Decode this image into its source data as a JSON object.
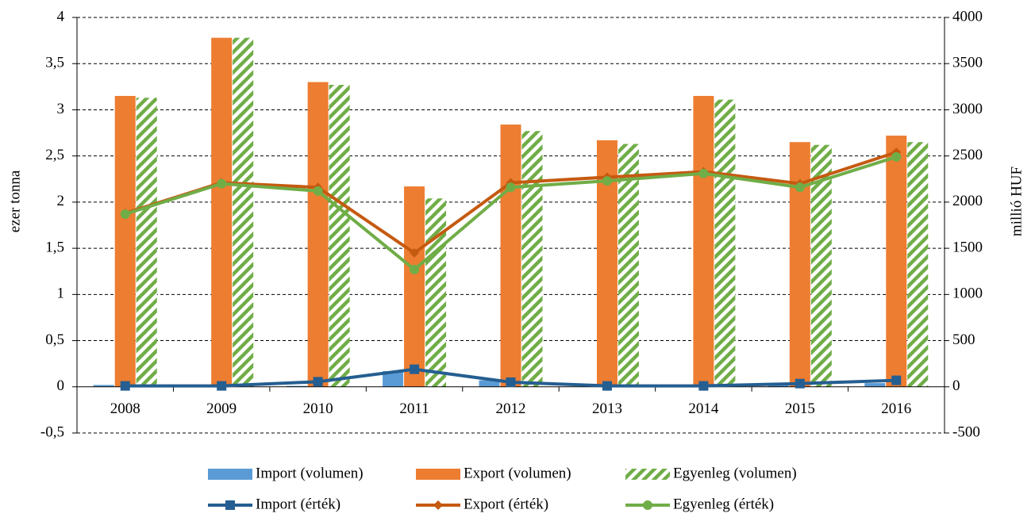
{
  "chart_data": {
    "type": "bar",
    "categories": [
      "2008",
      "2009",
      "2010",
      "2011",
      "2012",
      "2013",
      "2014",
      "2015",
      "2016"
    ],
    "ylabel": "ezer tonna",
    "y2label": "millió HUF",
    "ylim": [
      -0.5,
      4
    ],
    "yticks": [
      {
        "value": -0.5,
        "label": "-0,5"
      },
      0,
      {
        "value": 0.5,
        "label": "0,5"
      },
      1,
      {
        "value": 1.5,
        "label": "1,5"
      },
      2,
      {
        "value": 2.5,
        "label": "2,5"
      },
      3,
      {
        "value": 3.5,
        "label": "3,5"
      },
      4
    ],
    "y2lim": [
      -500,
      4000
    ],
    "y2ticks": [
      -500,
      0,
      500,
      1000,
      1500,
      2000,
      2500,
      3000,
      3500,
      4000
    ],
    "grid": true,
    "legend": "bottom",
    "series": [
      {
        "name": "Import (volumen)",
        "type": "bar",
        "color": "#5b9bd5",
        "values": [
          0.02,
          0,
          0.01,
          0.17,
          0.07,
          0,
          0,
          0.02,
          0.04
        ]
      },
      {
        "name": "Export (volumen)",
        "type": "bar",
        "color": "#ed7d31",
        "values": [
          3.15,
          3.78,
          3.3,
          2.17,
          2.84,
          2.67,
          3.15,
          2.65,
          2.72
        ]
      },
      {
        "name": "Egyenleg (volumen)",
        "type": "bar",
        "color": "#70ad47",
        "pattern": "hatch",
        "values": [
          3.13,
          3.78,
          3.27,
          2.04,
          2.77,
          2.63,
          3.11,
          2.62,
          2.65
        ]
      },
      {
        "name": "Import (érték)",
        "type": "line",
        "axis": "y2",
        "color": "#255e91",
        "marker": "square",
        "values": [
          10,
          10,
          55,
          190,
          50,
          10,
          10,
          35,
          70
        ]
      },
      {
        "name": "Export (érték)",
        "type": "line",
        "axis": "y2",
        "color": "#c55a11",
        "marker": "diamond",
        "values": [
          1880,
          2210,
          2160,
          1450,
          2210,
          2270,
          2330,
          2200,
          2540
        ]
      },
      {
        "name": "Egyenleg (érték)",
        "type": "line",
        "axis": "y2",
        "color": "#70ad47",
        "marker": "circle",
        "values": [
          1870,
          2200,
          2120,
          1270,
          2160,
          2230,
          2310,
          2160,
          2490
        ]
      }
    ]
  }
}
